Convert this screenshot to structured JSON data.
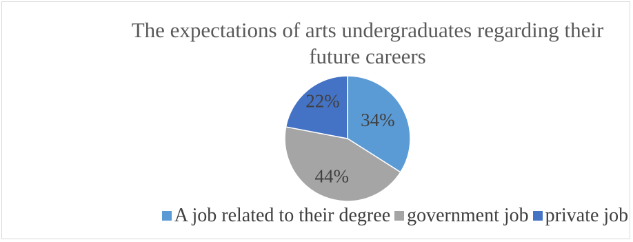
{
  "chart_data": {
    "type": "pie",
    "title": "The expectations of arts undergraduates regarding their future careers",
    "categories": [
      "A job related to their degree",
      "government job",
      "private job"
    ],
    "values": [
      34,
      44,
      22
    ],
    "labels": [
      "34%",
      "44%",
      "22%"
    ],
    "colors": [
      "#5b9bd5",
      "#a5a5a5",
      "#4472c4"
    ],
    "legend_position": "bottom"
  }
}
